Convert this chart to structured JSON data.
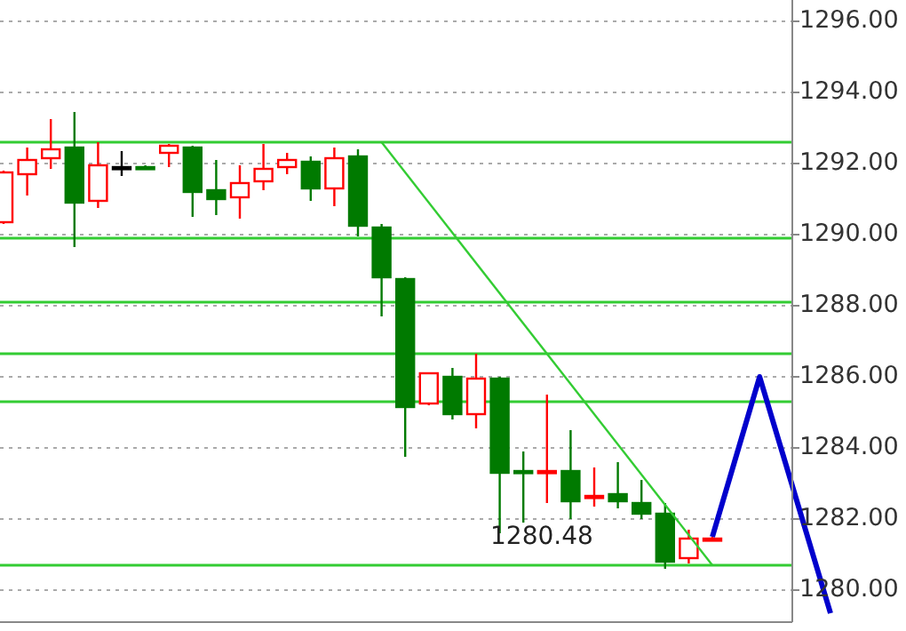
{
  "chart_data": {
    "type": "candlestick",
    "categories": [
      null,
      null,
      null,
      null,
      null,
      null,
      null,
      null,
      null,
      null,
      null,
      null,
      null,
      null,
      null,
      null,
      null,
      null,
      null,
      null,
      null,
      null,
      null,
      null,
      null,
      null,
      null,
      null,
      null,
      null,
      null,
      null,
      null,
      null,
      null,
      null
    ],
    "ohlc": [
      [
        1290.35,
        1291.8,
        1290.3,
        1291.75
      ],
      [
        1291.7,
        1292.45,
        1291.1,
        1292.1
      ],
      [
        1292.15,
        1293.25,
        1291.85,
        1292.4
      ],
      [
        1292.45,
        1293.45,
        1289.65,
        1290.9
      ],
      [
        1290.95,
        1292.6,
        1290.75,
        1291.95
      ],
      [
        1291.9,
        1292.35,
        1291.65,
        1291.9
      ],
      [
        1291.9,
        1291.95,
        1291.85,
        1291.88
      ],
      [
        1292.3,
        1292.55,
        1291.9,
        1292.5
      ],
      [
        1292.45,
        1292.5,
        1290.5,
        1291.2
      ],
      [
        1291.25,
        1292.1,
        1290.55,
        1291.0
      ],
      [
        1291.05,
        1291.95,
        1290.45,
        1291.45
      ],
      [
        1291.5,
        1292.55,
        1291.25,
        1291.85
      ],
      [
        1291.9,
        1292.3,
        1291.7,
        1292.1
      ],
      [
        1292.05,
        1292.2,
        1290.95,
        1291.3
      ],
      [
        1291.3,
        1292.45,
        1290.8,
        1292.15
      ],
      [
        1292.2,
        1292.4,
        1289.95,
        1290.25
      ],
      [
        1290.2,
        1290.3,
        1287.7,
        1288.8
      ],
      [
        1288.75,
        1288.8,
        1283.75,
        1285.15
      ],
      [
        1285.25,
        1286.1,
        1285.2,
        1286.1
      ],
      [
        1286.0,
        1286.25,
        1284.8,
        1284.95
      ],
      [
        1284.95,
        1286.65,
        1284.55,
        1285.95
      ],
      [
        1285.95,
        1286.0,
        1281.6,
        1283.3
      ],
      [
        1283.35,
        1283.9,
        1281.9,
        1283.3
      ],
      [
        1283.3,
        1285.5,
        1282.45,
        1283.35
      ],
      [
        1283.35,
        1284.5,
        1282.0,
        1282.5
      ],
      [
        1282.6,
        1283.45,
        1282.35,
        1282.65
      ],
      [
        1282.7,
        1283.6,
        1282.3,
        1282.5
      ],
      [
        1282.45,
        1283.1,
        1282.0,
        1282.15
      ],
      [
        1282.15,
        1282.45,
        1280.6,
        1280.8
      ],
      [
        1280.9,
        1281.7,
        1280.75,
        1281.45
      ],
      [
        1281.45,
        1281.5,
        1281.4,
        1281.45
      ],
      null,
      null,
      null,
      null,
      null
    ],
    "colors": [
      "#ff0000",
      "#ff0000",
      "#ff0000",
      "#007a00",
      "#ff0000",
      "#000000",
      "#007a00",
      "#ff0000",
      "#007a00",
      "#007a00",
      "#ff0000",
      "#ff0000",
      "#ff0000",
      "#007a00",
      "#ff0000",
      "#007a00",
      "#007a00",
      "#007a00",
      "#ff0000",
      "#007a00",
      "#ff0000",
      "#007a00",
      "#007a00",
      "#ff0000",
      "#007a00",
      "#ff0000",
      "#007a00",
      "#007a00",
      "#007a00",
      "#ff0000",
      "#ff0000",
      null,
      null,
      null,
      null,
      null
    ],
    "series": [
      {
        "type": "line",
        "color": "#33cc33",
        "values": [
          null,
          null,
          null,
          null,
          null,
          null,
          null,
          null,
          null,
          null,
          null,
          null,
          null,
          null,
          null,
          null,
          1292.6,
          null,
          null,
          null,
          null,
          null,
          null,
          null,
          null,
          null,
          null,
          null,
          null,
          null,
          1280.7,
          null,
          null,
          null,
          null,
          null
        ]
      },
      {
        "type": "line",
        "color": "#0000cc",
        "values": [
          null,
          null,
          null,
          null,
          null,
          null,
          null,
          null,
          null,
          null,
          null,
          null,
          null,
          null,
          null,
          null,
          null,
          null,
          null,
          null,
          null,
          null,
          null,
          null,
          null,
          null,
          null,
          null,
          null,
          null,
          1281.5,
          null,
          1286.0,
          null,
          null,
          1279.35
        ]
      }
    ],
    "ylim": [
      1279.1,
      1296.6
    ],
    "yticks": [
      {
        "value": 1280,
        "label": "1280.00"
      },
      {
        "value": 1282,
        "label": "1282.00"
      },
      {
        "value": 1284,
        "label": "1284.00"
      },
      {
        "value": 1286,
        "label": "1286.00"
      },
      {
        "value": 1288,
        "label": "1288.00"
      },
      {
        "value": 1290,
        "label": "1290.00"
      },
      {
        "value": 1292,
        "label": "1292.00"
      },
      {
        "value": 1294,
        "label": "1294.00"
      },
      {
        "value": 1296,
        "label": "1296.00"
      }
    ],
    "grid": "y",
    "line_style": "solid",
    "ref_lines": [
      {
        "axis": "y",
        "value": 1292.6,
        "color": "#33cc33"
      },
      {
        "axis": "y",
        "value": 1289.9,
        "color": "#33cc33"
      },
      {
        "axis": "y",
        "value": 1288.1,
        "color": "#33cc33"
      },
      {
        "axis": "y",
        "value": 1286.65,
        "color": "#33cc33"
      },
      {
        "axis": "y",
        "value": 1285.3,
        "color": "#33cc33"
      },
      {
        "axis": "y",
        "value": 1280.7,
        "color": "#33cc33"
      }
    ],
    "annotations": [
      "1280.48"
    ]
  }
}
